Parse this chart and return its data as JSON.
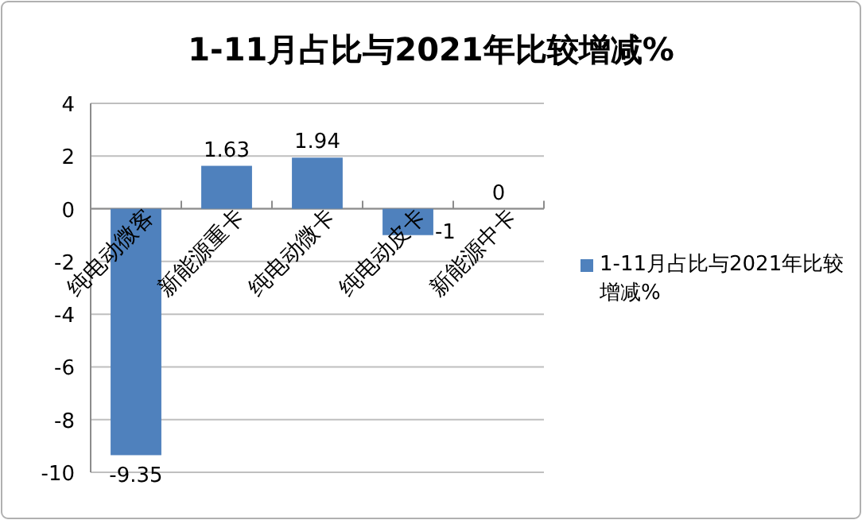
{
  "chart_data": {
    "type": "bar",
    "title": "1-11月占比与2021年比较增减%",
    "categories": [
      "纯电动微客",
      "新能源重卡",
      "纯电动微卡",
      "纯电动皮卡",
      "新能源中卡"
    ],
    "series": [
      {
        "name": "1-11月占比与2021年比较增减%",
        "color": "#4f81bd",
        "values": [
          -9.35,
          1.63,
          1.94,
          -1,
          0
        ]
      }
    ],
    "ylim": [
      -10,
      4
    ],
    "yticks": [
      -10,
      -8,
      -6,
      -4,
      -2,
      0,
      2,
      4
    ],
    "grid": "y",
    "legend": "right",
    "data_labels": true
  }
}
